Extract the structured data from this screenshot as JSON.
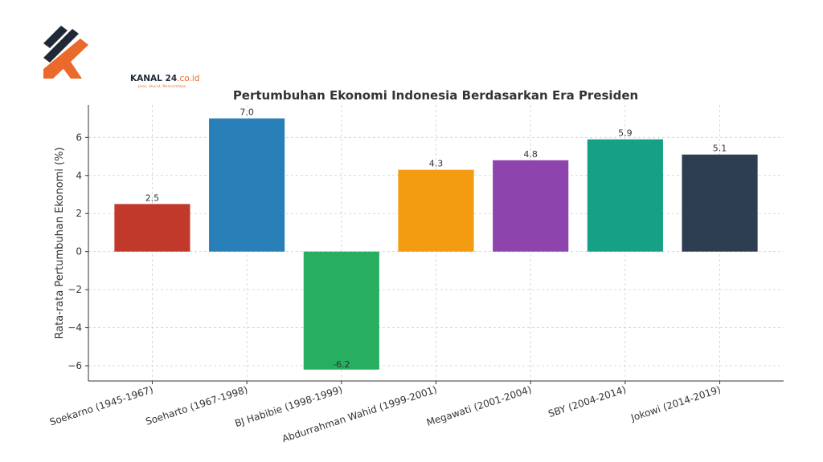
{
  "logo": {
    "name": "KANAL 24",
    "domain": ".co.id",
    "tagline": "Jelas, Akurat, Mencerahkan",
    "colors": {
      "dark": "#1f2937",
      "orange": "#ea6a2b"
    }
  },
  "chart_data": {
    "type": "bar",
    "title": "Pertumbuhan Ekonomi Indonesia Berdasarkan Era Presiden",
    "xlabel": "",
    "ylabel": "Rata-rata Pertumbuhan Ekonomi (%)",
    "ylim": [
      -6.8,
      7.7
    ],
    "yticks": [
      -6,
      -4,
      -2,
      0,
      2,
      4,
      6
    ],
    "grid": true,
    "categories": [
      "Soekarno (1945-1967)",
      "Soeharto (1967-1998)",
      "BJ Habibie (1998-1999)",
      "Abdurrahman Wahid (1999-2001)",
      "Megawati (2001-2004)",
      "SBY (2004-2014)",
      "Jokowi (2014-2019)"
    ],
    "values": [
      2.5,
      7.0,
      -6.2,
      4.3,
      4.8,
      5.9,
      5.1
    ],
    "value_labels": [
      "2.5",
      "7.0",
      "-6.2",
      "4.3",
      "4.8",
      "5.9",
      "5.1"
    ],
    "colors": [
      "#c0392b",
      "#2980b9",
      "#27ae60",
      "#f39c12",
      "#8e44ad",
      "#16a085",
      "#2c3e50"
    ]
  }
}
